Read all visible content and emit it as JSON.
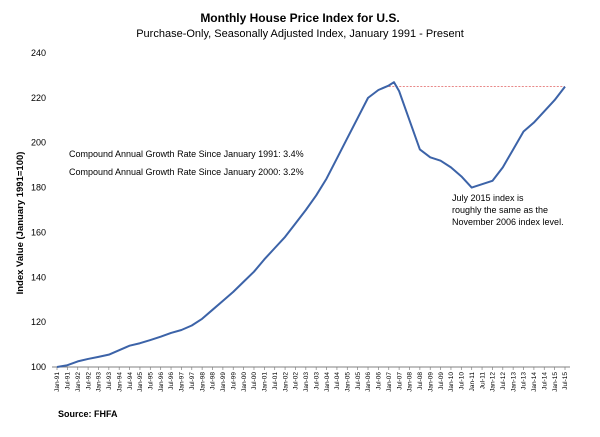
{
  "chart_data": {
    "type": "line",
    "title": "Monthly House Price Index for U.S.",
    "subtitle": "Purchase-Only, Seasonally Adjusted Index, January 1991 - Present",
    "ylabel": "Index Value (January 1991=100)",
    "xlabel": "",
    "ylim": [
      100,
      240
    ],
    "yticks": [
      100,
      120,
      140,
      160,
      180,
      200,
      220,
      240
    ],
    "grid": false,
    "legend": "none",
    "source": "Source: FHFA",
    "x_tick_labels": [
      "Jan-91",
      "Jul-91",
      "Jan-92",
      "Jul-92",
      "Jan-93",
      "Jul-93",
      "Jan-94",
      "Jul-94",
      "Jan-95",
      "Jul-95",
      "Jan-96",
      "Jul-96",
      "Jan-97",
      "Jul-97",
      "Jan-98",
      "Jul-98",
      "Jan-99",
      "Jul-99",
      "Jan-00",
      "Jul-00",
      "Jan-01",
      "Jul-01",
      "Jan-02",
      "Jul-02",
      "Jan-03",
      "Jul-03",
      "Jan-04",
      "Jul-04",
      "Jan-05",
      "Jul-05",
      "Jan-06",
      "Jul-06",
      "Jan-07",
      "Jul-07",
      "Jan-08",
      "Jul-08",
      "Jan-09",
      "Jul-09",
      "Jan-10",
      "Jul-10",
      "Jan-11",
      "Jul-11",
      "Jan-12",
      "Jul-12",
      "Jan-13",
      "Jul-13",
      "Jan-14",
      "Jul-14",
      "Jan-15",
      "Jul-15"
    ],
    "series": [
      {
        "color": "#3C63A8",
        "x": [
          "Jan-91",
          "Jul-91",
          "Jan-92",
          "Jul-92",
          "Jan-93",
          "Jul-93",
          "Jan-94",
          "Jul-94",
          "Jan-95",
          "Jul-95",
          "Jan-96",
          "Jul-96",
          "Jan-97",
          "Jul-97",
          "Jan-98",
          "Jul-98",
          "Jan-99",
          "Jul-99",
          "Jan-00",
          "Jul-00",
          "Jan-01",
          "Jul-01",
          "Jan-02",
          "Jul-02",
          "Jan-03",
          "Jul-03",
          "Jan-04",
          "Jul-04",
          "Jan-05",
          "Jul-05",
          "Jan-06",
          "Jul-06",
          "Jan-07",
          "Apr-07",
          "Jul-07",
          "Jan-08",
          "Jul-08",
          "Jan-09",
          "Jul-09",
          "Jan-10",
          "Jul-10",
          "Jan-11",
          "Jul-11",
          "Jan-12",
          "Jul-12",
          "Jan-13",
          "Jul-13",
          "Jan-14",
          "Jul-14",
          "Jan-15",
          "Jul-15"
        ],
        "values": [
          100,
          100.8,
          102.5,
          103.6,
          104.5,
          105.5,
          107.5,
          109.5,
          110.6,
          112,
          113.5,
          115.2,
          116.5,
          118.5,
          121.5,
          125.5,
          129.5,
          133.5,
          138,
          142.5,
          148,
          153,
          158,
          164,
          170,
          176.5,
          184,
          193,
          202,
          211,
          220,
          223.5,
          225.5,
          227,
          223,
          210,
          197,
          193.5,
          192,
          189,
          185,
          180,
          181.5,
          183,
          189,
          197,
          205,
          209,
          214,
          219,
          225
        ]
      }
    ],
    "reference_line": {
      "value": 225,
      "from": "Nov-06",
      "to": "Jul-15",
      "color": "#E06060"
    },
    "annotations": [
      "Compound Annual Growth Rate Since January 1991:  3.4%",
      "Compound Annual Growth Rate Since January 2000:  3.2%",
      "July 2015 index is",
      "roughly the same as the",
      "November 2006 index level."
    ]
  }
}
